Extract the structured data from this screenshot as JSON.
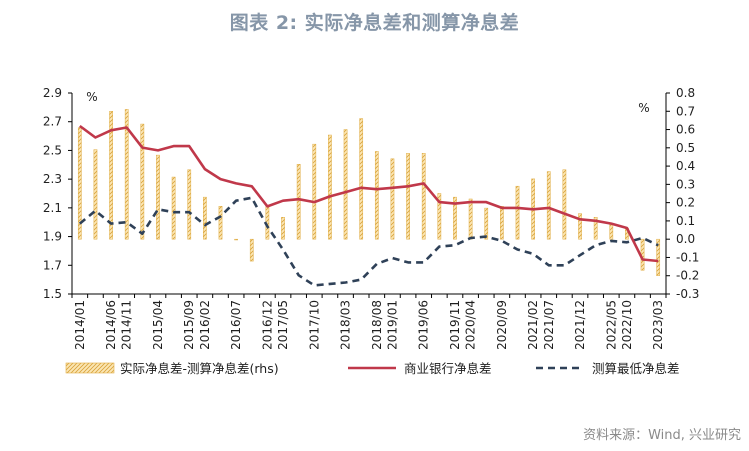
{
  "header": {
    "title": "图表 2:  实际净息差和测算净息差"
  },
  "source": "资料来源：Wind, 兴业研究",
  "chart_data": {
    "type": "bar+line",
    "left_unit": "%",
    "right_unit": "%",
    "ylim_left": [
      1.5,
      2.9
    ],
    "yticks_left": [
      "1.5",
      "1.7",
      "1.9",
      "2.1",
      "2.3",
      "2.5",
      "2.7",
      "2.9"
    ],
    "ylim_right": [
      -0.3,
      0.8
    ],
    "yticks_right": [
      "-0.3",
      "-0.2",
      "-0.1",
      "0.0",
      "0.1",
      "0.2",
      "0.3",
      "0.4",
      "0.5",
      "0.6",
      "0.7",
      "0.8"
    ],
    "x_tick_labels": [
      "2014/01",
      "2014/06",
      "2014/11",
      "2015/04",
      "2015/09",
      "2016/02",
      "2016/07",
      "2016/12",
      "2017/05",
      "2017/10",
      "2018/03",
      "2018/08",
      "2019/01",
      "2019/06",
      "2019/11",
      "2020/04",
      "2020/09",
      "2021/02",
      "2021/07",
      "2021/12",
      "2022/05",
      "2022/10",
      "2023/03"
    ],
    "x_count": 38,
    "series": [
      {
        "name": "实际净息差-测算净息差(rhs)",
        "type": "bar",
        "axis": "right",
        "color": "#e8b84a",
        "values": [
          0.61,
          0.49,
          0.7,
          0.71,
          0.63,
          0.46,
          0.34,
          0.38,
          0.23,
          0.18,
          0.0,
          -0.12,
          0.18,
          0.12,
          0.41,
          0.52,
          0.57,
          0.6,
          0.66,
          0.48,
          0.44,
          0.47,
          0.47,
          0.25,
          0.23,
          0.22,
          0.17,
          0.18,
          0.29,
          0.33,
          0.37,
          0.38,
          0.14,
          0.12,
          0.08,
          0.06,
          -0.17,
          -0.2
        ]
      },
      {
        "name": "商业银行净息差",
        "type": "line",
        "axis": "left",
        "color": "#c0384a",
        "values": [
          2.67,
          2.59,
          2.64,
          2.66,
          2.52,
          2.5,
          2.53,
          2.53,
          2.37,
          2.3,
          2.27,
          2.25,
          2.11,
          2.15,
          2.16,
          2.14,
          2.18,
          2.21,
          2.24,
          2.23,
          2.24,
          2.25,
          2.27,
          2.14,
          2.13,
          2.14,
          2.14,
          2.1,
          2.1,
          2.09,
          2.1,
          2.06,
          2.02,
          2.01,
          1.99,
          1.96,
          1.74,
          1.73
        ]
      },
      {
        "name": "测算最低净息差",
        "type": "line",
        "axis": "left",
        "dashed": true,
        "color": "#2f4158",
        "values": [
          1.99,
          2.08,
          1.99,
          2.0,
          1.92,
          2.09,
          2.07,
          2.07,
          1.98,
          2.04,
          2.15,
          2.17,
          1.97,
          1.81,
          1.63,
          1.56,
          1.57,
          1.58,
          1.6,
          1.71,
          1.75,
          1.72,
          1.72,
          1.83,
          1.84,
          1.89,
          1.9,
          1.87,
          1.81,
          1.78,
          1.7,
          1.7,
          1.77,
          1.84,
          1.87,
          1.86,
          1.89,
          1.84
        ]
      }
    ],
    "legend_position": "bottom"
  }
}
